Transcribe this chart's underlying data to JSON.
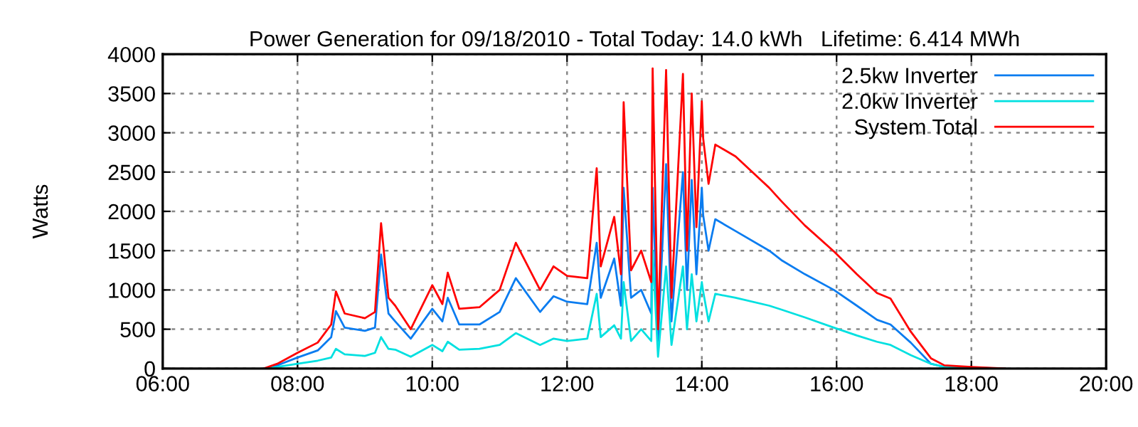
{
  "chart_data": {
    "type": "line",
    "title": "Power Generation for 09/18/2010 - Total Today: 14.0 kWh   Lifetime: 6.414 MWh",
    "ylabel": "Watts",
    "x": [
      7.5,
      7.7,
      8.0,
      8.3,
      8.5,
      8.57,
      8.7,
      9.0,
      9.15,
      9.24,
      9.35,
      9.45,
      9.68,
      10.0,
      10.15,
      10.23,
      10.4,
      10.7,
      11.0,
      11.24,
      11.6,
      11.8,
      12.0,
      12.3,
      12.44,
      12.5,
      12.7,
      12.8,
      12.84,
      12.95,
      13.1,
      13.25,
      13.27,
      13.35,
      13.47,
      13.55,
      13.72,
      13.78,
      13.85,
      13.92,
      14.0,
      14.02,
      14.1,
      14.2,
      14.5,
      15.0,
      15.18,
      15.53,
      15.96,
      16.3,
      16.6,
      16.8,
      17.1,
      17.4,
      17.6,
      18.0,
      18.5
    ],
    "series": [
      {
        "name": "2.5kw Inverter",
        "color": "#0a7cf0",
        "values": [
          0,
          40,
          140,
          230,
          400,
          730,
          520,
          480,
          520,
          1450,
          700,
          600,
          380,
          760,
          600,
          900,
          560,
          560,
          720,
          1150,
          720,
          920,
          850,
          820,
          1600,
          900,
          1400,
          800,
          2300,
          900,
          1000,
          700,
          2300,
          350,
          2600,
          600,
          2500,
          1000,
          2400,
          1200,
          2300,
          1950,
          1500,
          1900,
          1750,
          1500,
          1380,
          1200,
          1000,
          800,
          620,
          560,
          330,
          60,
          20,
          10,
          0
        ]
      },
      {
        "name": "2.0kw Inverter",
        "color": "#00e0e0",
        "values": [
          0,
          20,
          60,
          100,
          140,
          250,
          180,
          160,
          200,
          400,
          250,
          240,
          150,
          300,
          220,
          340,
          240,
          250,
          300,
          450,
          300,
          380,
          350,
          380,
          950,
          400,
          550,
          380,
          1100,
          350,
          500,
          350,
          1500,
          150,
          1300,
          300,
          1300,
          500,
          1200,
          600,
          1100,
          980,
          600,
          950,
          900,
          800,
          750,
          650,
          520,
          420,
          340,
          300,
          170,
          60,
          20,
          10,
          0
        ]
      },
      {
        "name": "System Total",
        "color": "#ff0000",
        "values": [
          0,
          60,
          200,
          330,
          560,
          980,
          700,
          640,
          720,
          1850,
          900,
          800,
          500,
          1060,
          820,
          1220,
          760,
          780,
          1000,
          1600,
          1000,
          1300,
          1180,
          1150,
          2550,
          1300,
          1930,
          1200,
          3390,
          1250,
          1500,
          1100,
          3820,
          500,
          3800,
          900,
          3750,
          1500,
          3500,
          1800,
          3400,
          2930,
          2350,
          2850,
          2700,
          2300,
          2130,
          1820,
          1490,
          1200,
          960,
          890,
          470,
          130,
          40,
          20,
          0
        ]
      }
    ],
    "xlim": [
      6,
      20
    ],
    "xticks": [
      {
        "value": 6,
        "label": "06:00"
      },
      {
        "value": 8,
        "label": "08:00"
      },
      {
        "value": 10,
        "label": "10:00"
      },
      {
        "value": 12,
        "label": "12:00"
      },
      {
        "value": 14,
        "label": "14:00"
      },
      {
        "value": 16,
        "label": "16:00"
      },
      {
        "value": 18,
        "label": "18:00"
      },
      {
        "value": 20,
        "label": "20:00"
      }
    ],
    "ylim": [
      0,
      4000
    ],
    "yticks": [
      0,
      500,
      1000,
      1500,
      2000,
      2500,
      3000,
      3500,
      4000
    ],
    "grid": true,
    "legend": "top right",
    "line_style": "solid",
    "marker": "none"
  }
}
